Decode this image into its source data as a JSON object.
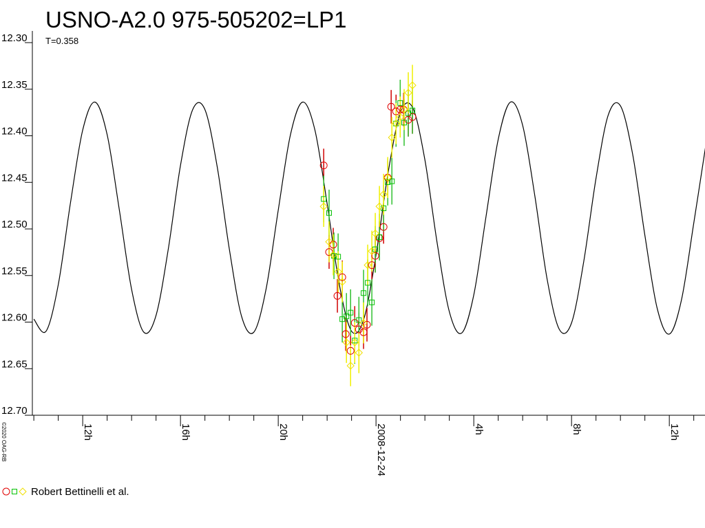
{
  "chart_data": {
    "type": "lightcurve",
    "title": "USNO-A2.0 975-505202=LP1",
    "subtitle": "T=0.358",
    "credit": "©2020 OAG-RB",
    "legend_label": "Robert Bettinelli et al.",
    "y_inverted": true,
    "ylim": [
      12.3,
      12.7
    ],
    "yticks": [
      {
        "value": 12.3,
        "label": "12.30"
      },
      {
        "value": 12.35,
        "label": "12.35"
      },
      {
        "value": 12.4,
        "label": "12.40"
      },
      {
        "value": 12.45,
        "label": "12.45"
      },
      {
        "value": 12.5,
        "label": "12.50"
      },
      {
        "value": 12.55,
        "label": "12.55"
      },
      {
        "value": 12.6,
        "label": "12.60"
      },
      {
        "value": 12.65,
        "label": "12.65"
      },
      {
        "value": 12.7,
        "label": "12.70"
      }
    ],
    "xlim": [
      -14.06,
      13.46
    ],
    "xticks": [
      {
        "value": -12,
        "label": "12h"
      },
      {
        "value": -8,
        "label": "16h"
      },
      {
        "value": -4,
        "label": "20h"
      },
      {
        "value": 0,
        "label": "2008-12-24"
      },
      {
        "value": 4,
        "label": "4h"
      },
      {
        "value": 8,
        "label": "8h"
      },
      {
        "value": 12,
        "label": "12h"
      }
    ],
    "xminorticks": [
      -14,
      -13,
      -11,
      -10,
      -9,
      -7,
      -6,
      -5,
      -3,
      -2,
      -1,
      1,
      2,
      3,
      5,
      6,
      7,
      9,
      10,
      11,
      13
    ],
    "model": {
      "color": "#000000",
      "x": [
        -14,
        -13.5,
        -13,
        -12.5,
        -12,
        -11.5,
        -11,
        -10.5,
        -10,
        -9.5,
        -9,
        -8.5,
        -8,
        -7.5,
        -7,
        -6.5,
        -6,
        -5.5,
        -5,
        -4.5,
        -4,
        -3.5,
        -3,
        -2.5,
        -2,
        -1.5,
        -1,
        -0.5,
        0,
        0.5,
        1,
        1.5,
        2,
        2.5,
        3,
        3.5,
        4,
        4.5,
        5,
        5.5,
        6,
        6.5,
        7,
        7.5,
        8,
        8.5,
        9,
        9.5,
        10,
        10.5,
        11,
        11.5,
        12,
        12.5,
        13,
        13.5
      ],
      "values": [
        12.602,
        12.615,
        12.565,
        12.477,
        12.399,
        12.369,
        12.404,
        12.485,
        12.57,
        12.616,
        12.598,
        12.527,
        12.437,
        12.377,
        12.377,
        12.438,
        12.527,
        12.599,
        12.616,
        12.57,
        12.485,
        12.404,
        12.369,
        12.399,
        12.478,
        12.565,
        12.615,
        12.602,
        12.533,
        12.444,
        12.38,
        12.375,
        12.431,
        12.52,
        12.594,
        12.617,
        12.576,
        12.492,
        12.409,
        12.369,
        12.394,
        12.47,
        12.559,
        12.613,
        12.606,
        12.54,
        12.451,
        12.383,
        12.373,
        12.425,
        12.512,
        12.59,
        12.618,
        12.581,
        12.499,
        12.414
      ]
    },
    "series": [
      {
        "marker": "circle",
        "color": "#e00000",
        "error_color": "#d00000",
        "x": [
          -2.14,
          -1.92,
          -1.75,
          -1.58,
          -1.38,
          -1.24,
          -1.04,
          -0.87,
          -0.7,
          -0.51,
          -0.37,
          -0.17,
          -0.03,
          0.14,
          0.31,
          0.48,
          0.62,
          0.82,
          0.99,
          1.13,
          1.32,
          1.49
        ],
        "values": [
          12.437,
          12.53,
          12.522,
          12.577,
          12.557,
          12.618,
          12.636,
          12.606,
          12.613,
          12.616,
          12.608,
          12.544,
          12.534,
          12.515,
          12.503,
          12.45,
          12.374,
          12.379,
          12.377,
          12.377,
          12.388,
          12.385
        ],
        "errors": [
          0.018,
          0.018,
          0.018,
          0.018,
          0.018,
          0.018,
          0.018,
          0.018,
          0.018,
          0.018,
          0.018,
          0.018,
          0.018,
          0.018,
          0.018,
          0.018,
          0.018,
          0.018,
          0.018,
          0.018,
          0.018,
          0.018
        ]
      },
      {
        "marker": "square",
        "color": "#00c000",
        "error_color": "#30c030",
        "x": [
          -2.14,
          -1.92,
          -1.72,
          -1.55,
          -1.38,
          -1.21,
          -1.04,
          -0.87,
          -0.7,
          -0.51,
          -0.34,
          -0.17,
          -0.03,
          0.14,
          0.31,
          0.48,
          0.65,
          0.82,
          0.99,
          1.15,
          1.32,
          1.49
        ],
        "values": [
          12.473,
          12.488,
          12.534,
          12.535,
          12.602,
          12.599,
          12.595,
          12.625,
          12.603,
          12.574,
          12.563,
          12.584,
          12.527,
          12.514,
          12.483,
          12.455,
          12.454,
          12.392,
          12.37,
          12.391,
          12.381,
          12.378
        ],
        "errors": [
          0.025,
          0.025,
          0.025,
          0.025,
          0.025,
          0.025,
          0.025,
          0.025,
          0.025,
          0.025,
          0.025,
          0.025,
          0.025,
          0.025,
          0.025,
          0.025,
          0.025,
          0.025,
          0.025,
          0.025,
          0.025,
          0.025
        ]
      },
      {
        "marker": "diamond",
        "color": "#f0e000",
        "error_color": "#f0f000",
        "x": [
          -2.14,
          -1.92,
          -1.75,
          -1.55,
          -1.38,
          -1.21,
          -1.04,
          -0.87,
          -0.7,
          -0.51,
          -0.34,
          -0.17,
          -0.03,
          0.14,
          0.31,
          0.48,
          0.65,
          0.82,
          0.99,
          1.15,
          1.32,
          1.49
        ],
        "values": [
          12.481,
          12.519,
          12.533,
          12.551,
          12.562,
          12.627,
          12.652,
          12.627,
          12.638,
          12.606,
          12.544,
          12.529,
          12.51,
          12.481,
          12.468,
          12.45,
          12.407,
          12.392,
          12.385,
          12.377,
          12.359,
          12.351
        ],
        "errors": [
          0.022,
          0.022,
          0.022,
          0.022,
          0.022,
          0.022,
          0.022,
          0.022,
          0.022,
          0.022,
          0.022,
          0.022,
          0.022,
          0.022,
          0.022,
          0.022,
          0.022,
          0.022,
          0.022,
          0.022,
          0.022,
          0.022
        ]
      }
    ]
  }
}
